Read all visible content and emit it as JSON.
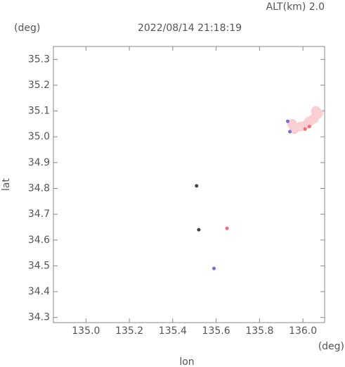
{
  "chart_data": {
    "type": "scatter",
    "title": "2022/08/14 21:18:19",
    "subtitle": "ALT(km) 2.0",
    "y_unit": "(deg)",
    "x_unit": "(deg)",
    "x_label": "lon",
    "y_label": "lat",
    "xlim": [
      134.85,
      136.1
    ],
    "ylim": [
      34.28,
      35.35
    ],
    "xticks": [
      {
        "value": 135,
        "label": "135.0"
      },
      135.2,
      135.4,
      135.6,
      135.8,
      {
        "value": 136,
        "label": "136.0"
      }
    ],
    "yticks": [
      34.3,
      34.4,
      34.5,
      34.6,
      34.7,
      34.8,
      34.9,
      {
        "value": 35,
        "label": "35.0"
      },
      35.1,
      35.2,
      35.3
    ],
    "series": [
      {
        "color": "#f9cfd3",
        "x": [
          135.96,
          135.99,
          136.02,
          136.05,
          136.07,
          136.06,
          136.03,
          135.95
        ],
        "values": [
          35.03,
          35.04,
          35.05,
          35.07,
          35.09,
          35.1,
          35.06,
          35.05
        ]
      },
      {
        "color": "#f26d77",
        "x": [
          136.01,
          136.03,
          135.65
        ],
        "values": [
          35.03,
          35.04,
          34.645
        ]
      },
      {
        "color": "#6a74d8",
        "x": [
          135.93,
          135.94,
          135.59
        ],
        "values": [
          35.06,
          35.02,
          34.49
        ]
      },
      {
        "color": "#444444",
        "x": [
          135.51,
          135.52
        ],
        "values": [
          34.81,
          34.64
        ]
      }
    ]
  }
}
